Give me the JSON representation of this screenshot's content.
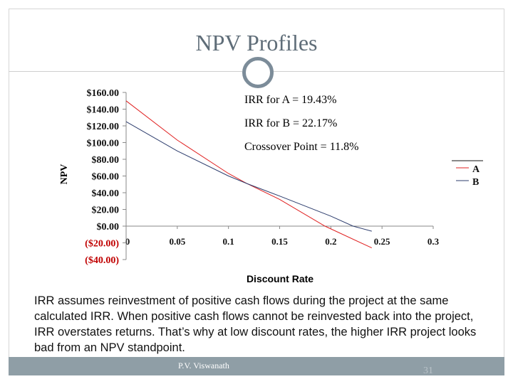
{
  "slide": {
    "title": "NPV Profiles",
    "annotations": {
      "irr_a": "IRR for A = 19.43%",
      "irr_b": "IRR for B = 22.17%",
      "crossover": "Crossover Point = 11.8%"
    },
    "body": "IRR assumes reinvestment of positive cash flows during the project at the same calculated IRR. When positive cash flows cannot be reinvested back into the project, IRR overstates returns.  That’s why at low discount rates, the higher IRR project looks bad from an NPV standpoint.",
    "footer_author": "P.V. Viswanath",
    "slide_number": "31"
  },
  "chart_data": {
    "type": "line",
    "title": "",
    "xlabel": "Discount Rate",
    "ylabel": "NPV",
    "xlim": [
      0,
      0.3
    ],
    "ylim": [
      -40,
      160
    ],
    "x_ticks": [
      0,
      0.05,
      0.1,
      0.15,
      0.2,
      0.25,
      0.3
    ],
    "x_tick_labels": [
      "0",
      "0.05",
      "0.1",
      "0.15",
      "0.2",
      "0.25",
      "0.3"
    ],
    "y_ticks": [
      160,
      140,
      120,
      100,
      80,
      60,
      40,
      20,
      0,
      -20,
      -40
    ],
    "y_tick_labels": [
      "$160.00",
      "$140.00",
      "$120.00",
      "$100.00",
      "$80.00",
      "$60.00",
      "$40.00",
      "$20.00",
      "$0.00",
      "($20.00)",
      "($40.00)"
    ],
    "negative_label_color": "#c00000",
    "legend_position": "right",
    "series": [
      {
        "name": "A",
        "color": "#e02020",
        "x": [
          0,
          0.05,
          0.1,
          0.118,
          0.15,
          0.1943,
          0.24
        ],
        "y": [
          150,
          103,
          63,
          51,
          32,
          0,
          -26
        ]
      },
      {
        "name": "B",
        "color": "#2e3e6e",
        "x": [
          0,
          0.05,
          0.1,
          0.118,
          0.15,
          0.2,
          0.2217,
          0.24
        ],
        "y": [
          125,
          90,
          60,
          51,
          36,
          12,
          0,
          -6
        ]
      }
    ]
  }
}
